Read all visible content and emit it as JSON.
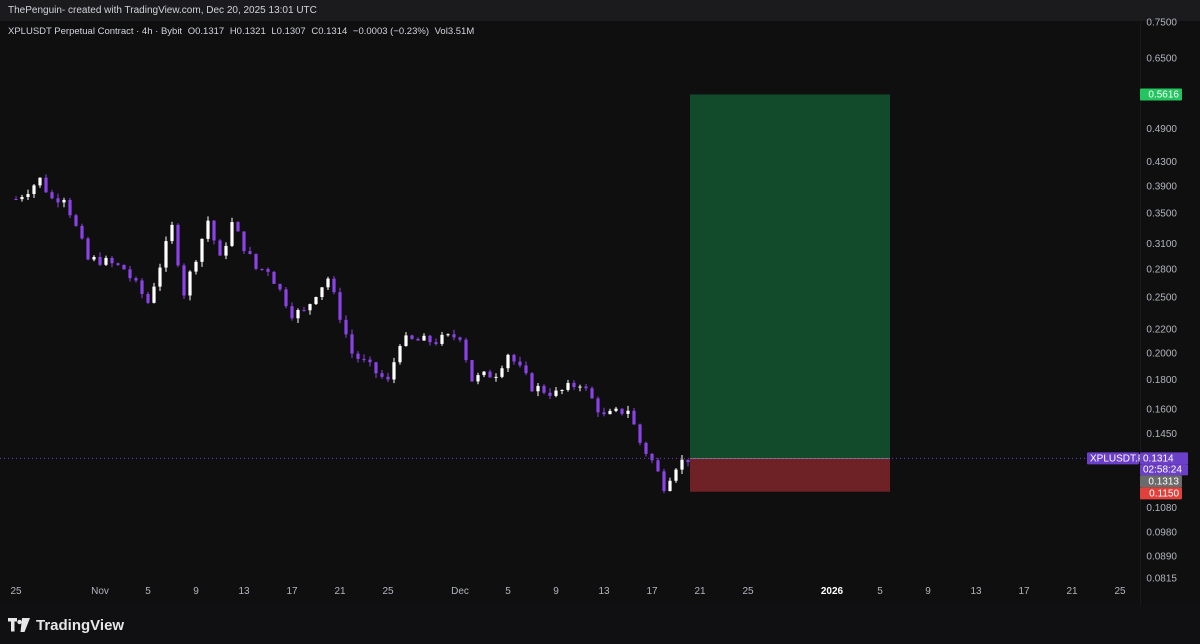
{
  "header": {
    "text": "ThePenguin- created with TradingView.com, Dec 20, 2025 13:01 UTC"
  },
  "legend": {
    "symbol": "XPLUSDT Perpetual Contract · 4h · Bybit",
    "open": "O0.1317",
    "high": "H0.1321",
    "low": "L0.1307",
    "close": "C0.1314",
    "change": "−0.0003 (−0.23%)",
    "volume": "Vol3.51M"
  },
  "footer": {
    "brand": "TradingView"
  },
  "chart_data": {
    "type": "candlestick",
    "symbol": "XPLUSDT.P",
    "interval": "4h",
    "exchange": "Bybit",
    "y_scale": "log",
    "y_ticks": [
      "0.7500",
      "0.6500",
      "0.5616",
      "0.4900",
      "0.4300",
      "0.3900",
      "0.3500",
      "0.3100",
      "0.2800",
      "0.2500",
      "0.2200",
      "0.2000",
      "0.1800",
      "0.1600",
      "0.1450",
      "0.1314",
      "0.1313",
      "0.1150",
      "0.1080",
      "0.0980",
      "0.0890",
      "0.0815"
    ],
    "y_tick_values": [
      0.75,
      0.65,
      0.5616,
      0.49,
      0.43,
      0.39,
      0.35,
      0.31,
      0.28,
      0.25,
      0.22,
      0.2,
      0.18,
      0.16,
      0.145,
      0.1314,
      0.1313,
      0.115,
      0.108,
      0.098,
      0.089,
      0.0815
    ],
    "x_ticks": [
      "25",
      "Nov",
      "5",
      "9",
      "13",
      "17",
      "21",
      "25",
      "Dec",
      "5",
      "9",
      "13",
      "17",
      "21",
      "25",
      "2026",
      "5",
      "9",
      "13",
      "17",
      "21",
      "25"
    ],
    "x_tick_bold": [
      "2026"
    ],
    "price_path": [
      [
        "Oct 25",
        0.37
      ],
      [
        "Oct 27",
        0.4
      ],
      [
        "Oct 28",
        0.37
      ],
      [
        "Oct 29",
        0.375
      ],
      [
        "Oct 31",
        0.29
      ],
      [
        "Nov 1",
        0.29
      ],
      [
        "Nov 3",
        0.28
      ],
      [
        "Nov 5",
        0.245
      ],
      [
        "Nov 7",
        0.33
      ],
      [
        "Nov 8",
        0.255
      ],
      [
        "Nov 10",
        0.34
      ],
      [
        "Nov 11",
        0.29
      ],
      [
        "Nov 12",
        0.335
      ],
      [
        "Nov 14",
        0.28
      ],
      [
        "Nov 15",
        0.28
      ],
      [
        "Nov 17",
        0.235
      ],
      [
        "Nov 18",
        0.235
      ],
      [
        "Nov 19",
        0.255
      ],
      [
        "Nov 20",
        0.27
      ],
      [
        "Nov 22",
        0.2
      ],
      [
        "Nov 25",
        0.178
      ],
      [
        "Nov 26",
        0.21
      ],
      [
        "Nov 29",
        0.21
      ],
      [
        "Dec 1",
        0.215
      ],
      [
        "Dec 2",
        0.18
      ],
      [
        "Dec 4",
        0.185
      ],
      [
        "Dec 5",
        0.2
      ],
      [
        "Dec 7",
        0.175
      ],
      [
        "Dec 9",
        0.17
      ],
      [
        "Dec 11",
        0.178
      ],
      [
        "Dec 13",
        0.155
      ],
      [
        "Dec 15",
        0.16
      ],
      [
        "Dec 16",
        0.14
      ],
      [
        "Dec 17",
        0.13
      ],
      [
        "Dec 18",
        0.118
      ],
      [
        "Dec 19",
        0.128
      ],
      [
        "Dec 20",
        0.1314
      ]
    ],
    "last_price": 0.1314,
    "position": {
      "type": "long",
      "entry": 0.1313,
      "target": 0.5616,
      "stop": 0.115,
      "start": "Dec 21",
      "end": "Jan 7"
    },
    "price_labels": [
      {
        "text": "0.5616",
        "color": "#22c55e",
        "value": 0.5616
      },
      {
        "text": "XPLUSDT.P",
        "color": "#6b3fc8",
        "value": 0.1314
      },
      {
        "text": "0.1314",
        "color": "#6b3fc8",
        "value": 0.1314
      },
      {
        "text": "02:58:24",
        "color": "#6b3fc8",
        "value": 0.1314
      },
      {
        "text": "0.1313",
        "color": "#6b6b6b",
        "value": 0.1313
      },
      {
        "text": "0.1150",
        "color": "#e0413c",
        "value": 0.115
      }
    ],
    "colors": {
      "candle_up": "#ffffff",
      "candle_down": "#8a43e6",
      "target_zone": "#124a2c",
      "stop_zone": "#6e2226",
      "last_price_line": "#6b3fc8"
    },
    "grid": false
  }
}
